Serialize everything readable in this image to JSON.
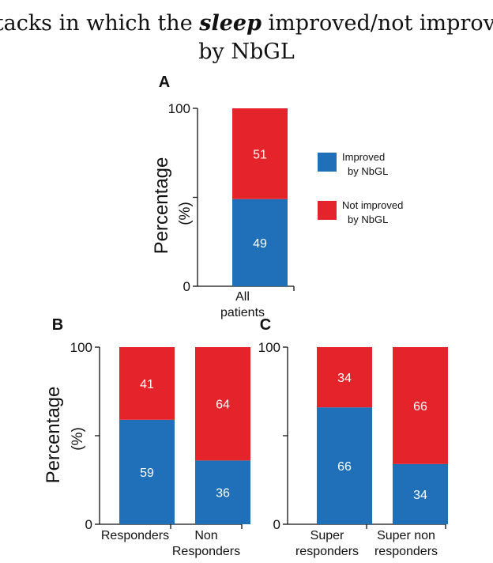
{
  "title": {
    "prefix": "Attacks in which the ",
    "emphasis": "sleep",
    "suffix": " improved/not improved",
    "line2": "by NbGL"
  },
  "colors": {
    "improved": "#1f70b8",
    "not_improved": "#e5232a"
  },
  "legend": [
    {
      "line1": "Improved",
      "line2": "by NbGL",
      "color_key": "improved"
    },
    {
      "line1": "Not improved",
      "line2": "by NbGL",
      "color_key": "not_improved"
    }
  ],
  "chart_data": [
    {
      "panel": "A",
      "type": "bar",
      "stacked": true,
      "ylabel": "Percentage",
      "ylabel_unit": "(%)",
      "ylim": [
        0,
        100
      ],
      "yticks": [
        "0",
        "100"
      ],
      "categories": [
        {
          "line1": "All",
          "line2": "patients"
        }
      ],
      "series": [
        {
          "name": "Improved by NbGL",
          "color_key": "improved",
          "values": [
            49
          ]
        },
        {
          "name": "Not improved by NbGL",
          "color_key": "not_improved",
          "values": [
            51
          ]
        }
      ]
    },
    {
      "panel": "B",
      "type": "bar",
      "stacked": true,
      "ylabel": "Percentage",
      "ylabel_unit": "(%)",
      "ylim": [
        0,
        100
      ],
      "yticks": [
        "0",
        "100"
      ],
      "categories": [
        {
          "line1": "Responders",
          "line2": ""
        },
        {
          "line1": "Non",
          "line2": "Responders"
        }
      ],
      "series": [
        {
          "name": "Improved by NbGL",
          "color_key": "improved",
          "values": [
            59,
            36
          ]
        },
        {
          "name": "Not improved by NbGL",
          "color_key": "not_improved",
          "values": [
            41,
            64
          ]
        }
      ]
    },
    {
      "panel": "C",
      "type": "bar",
      "stacked": true,
      "ylim": [
        0,
        100
      ],
      "yticks": [
        "0",
        "100"
      ],
      "categories": [
        {
          "line1": "Super",
          "line2": "responders"
        },
        {
          "line1": "Super non",
          "line2": "responders"
        }
      ],
      "series": [
        {
          "name": "Improved by NbGL",
          "color_key": "improved",
          "values": [
            66,
            34
          ]
        },
        {
          "name": "Not improved by NbGL",
          "color_key": "not_improved",
          "values": [
            34,
            66
          ]
        }
      ]
    }
  ]
}
